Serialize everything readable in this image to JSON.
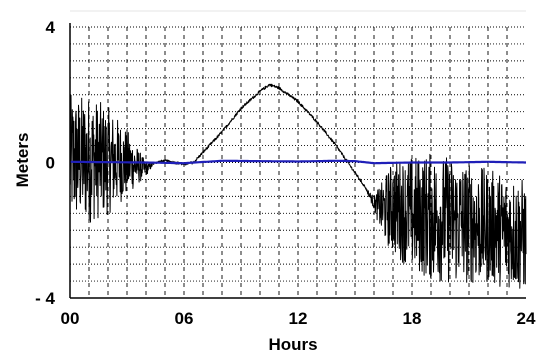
{
  "chart_data": {
    "type": "line",
    "xlabel": "Hours",
    "ylabel": "Meters",
    "xlim": [
      0,
      24
    ],
    "ylim": [
      -4,
      4
    ],
    "x_ticks": [
      {
        "value": 0,
        "label": "00"
      },
      {
        "value": 6,
        "label": "06"
      },
      {
        "value": 12,
        "label": "12"
      },
      {
        "value": 18,
        "label": "18"
      },
      {
        "value": 24,
        "label": "24"
      }
    ],
    "y_ticks": [
      {
        "value": 4,
        "label": "4"
      },
      {
        "value": 0,
        "label": "0"
      },
      {
        "value": -4,
        "label": "- 4"
      }
    ],
    "grid": {
      "vertical_dashed_every_hours": 1,
      "horizontal_dotted_every_meters": 0.5
    },
    "series": [
      {
        "color": "#000000",
        "x": [
          0,
          1,
          2,
          3,
          3.5,
          4,
          4.5,
          5,
          5.5,
          6,
          6.5,
          7,
          8,
          9,
          10,
          10.5,
          11,
          12,
          13,
          14,
          15,
          15.5,
          16,
          16.5,
          17,
          18,
          19,
          20,
          21,
          22,
          23,
          24
        ],
        "y": [
          0.1,
          0.1,
          0.05,
          0.0,
          -0.1,
          -0.2,
          0.0,
          0.05,
          0.0,
          -0.05,
          0.0,
          0.3,
          0.9,
          1.6,
          2.1,
          2.3,
          2.2,
          1.8,
          1.2,
          0.5,
          -0.3,
          -0.7,
          -1.2,
          -1.4,
          -1.3,
          -1.5,
          -1.6,
          -1.7,
          -1.8,
          -1.9,
          -2.0,
          -2.2
        ],
        "noise_amplitude": [
          1.9,
          1.9,
          1.6,
          1.0,
          0.6,
          0.2,
          0.0,
          0.0,
          0.0,
          0.0,
          0.0,
          0.0,
          0.0,
          0.0,
          0.0,
          0.0,
          0.0,
          0.0,
          0.0,
          0.0,
          0.0,
          0.0,
          0.2,
          0.9,
          1.4,
          1.7,
          1.9,
          1.9,
          1.8,
          1.7,
          1.7,
          1.7
        ]
      },
      {
        "color": "#1f1fb8",
        "x": [
          0,
          4,
          6,
          8,
          12,
          14,
          15,
          16,
          18,
          20,
          22,
          24
        ],
        "y": [
          0.02,
          0.0,
          -0.02,
          0.05,
          0.03,
          0.05,
          0.04,
          -0.02,
          0.0,
          0.0,
          0.02,
          0.0
        ]
      }
    ]
  }
}
